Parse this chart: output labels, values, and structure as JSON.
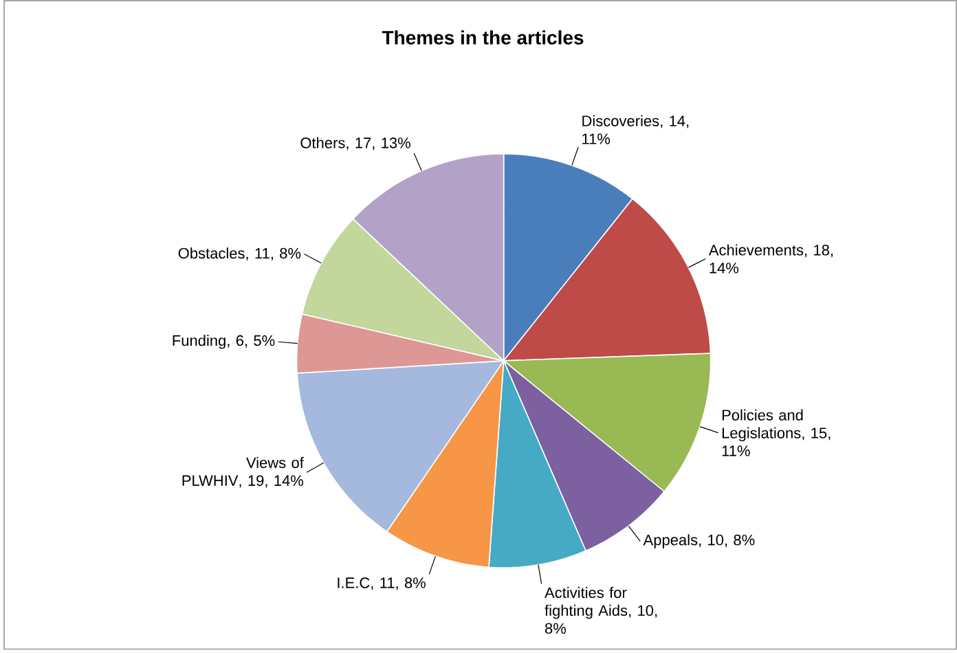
{
  "chart_data": {
    "type": "pie",
    "title": "Themes in  the articles",
    "categories": [
      "Discoveries",
      "Achievements",
      "Policies and Legislations",
      "Appeals",
      "Activities for fighting Aids",
      "I.E.C",
      "Views of PLWHIV",
      "Funding",
      "Obstacles",
      "Others"
    ],
    "values": [
      14,
      18,
      15,
      10,
      10,
      11,
      19,
      6,
      11,
      17
    ],
    "value_labels": [
      ", 14, 11%",
      ", 18, 14%",
      ", 15, 11%",
      ", 10, 8%",
      ", 10, 8%",
      ", 11, 8%",
      ", 19, 14%",
      ", 6, 5%",
      ", 11, 8%",
      ", 17, 13%"
    ],
    "colors": [
      "#4a7ebb",
      "#be4b48",
      "#98b954",
      "#7d60a0",
      "#46aac5",
      "#f79646",
      "#a5b9df",
      "#dd9795",
      "#c3d69b",
      "#b3a2c7"
    ]
  }
}
